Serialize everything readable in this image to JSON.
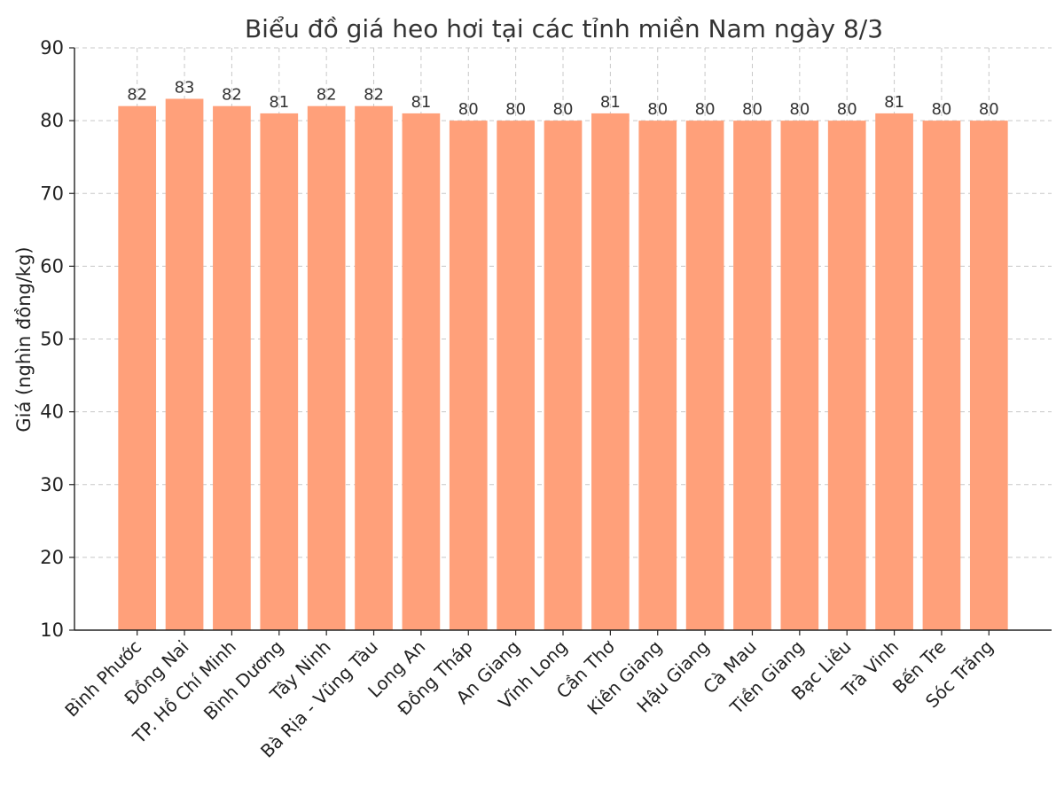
{
  "chart_data": {
    "type": "bar",
    "title": "Biểu đồ giá heo hơi tại các tỉnh miền Nam ngày 8/3",
    "xlabel": "",
    "ylabel": "Giá (nghìn đồng/kg)",
    "ylim": [
      10,
      90
    ],
    "yticks": [
      "10",
      "20",
      "30",
      "40",
      "50",
      "60",
      "70",
      "80",
      "90"
    ],
    "grid": true,
    "bar_color": "#FFA07A",
    "categories": [
      "Bình Phước",
      "Đồng Nai",
      "TP. Hồ Chí Minh",
      "Bình Dương",
      "Tây Ninh",
      "Bà Rịa - Vũng Tàu",
      "Long An",
      "Đồng Tháp",
      "An Giang",
      "Vĩnh Long",
      "Cần Thơ",
      "Kiên Giang",
      "Hậu Giang",
      "Cà Mau",
      "Tiền Giang",
      "Bạc Liêu",
      "Trà Vinh",
      "Bến Tre",
      "Sóc Trăng"
    ],
    "values": [
      82,
      83,
      82,
      81,
      82,
      82,
      81,
      80,
      80,
      80,
      81,
      80,
      80,
      80,
      80,
      80,
      81,
      80,
      80
    ],
    "labels": [
      "82",
      "83",
      "82",
      "81",
      "82",
      "82",
      "81",
      "80",
      "80",
      "80",
      "81",
      "80",
      "80",
      "80",
      "80",
      "80",
      "81",
      "80",
      "80"
    ]
  }
}
